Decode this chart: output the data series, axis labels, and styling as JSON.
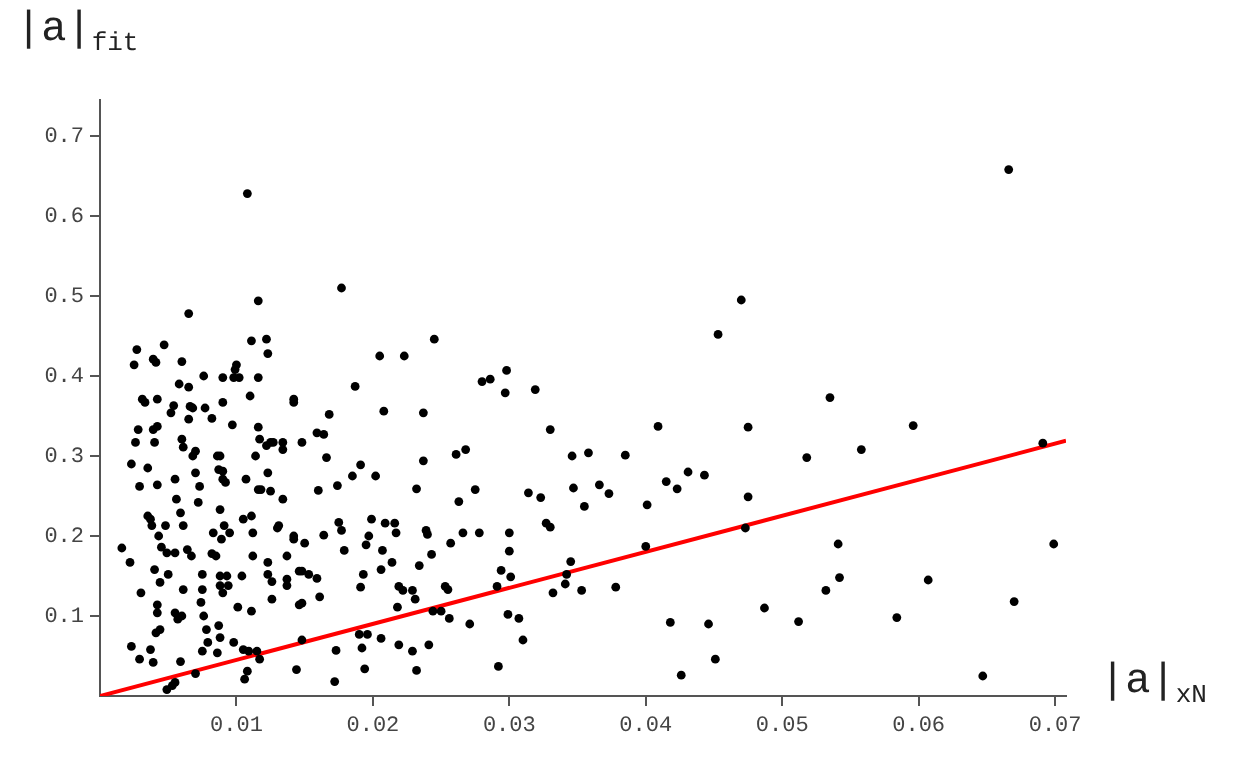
{
  "chart_data": {
    "type": "scatter",
    "xlabel": "|a|$_{xN}$",
    "ylabel": "|a|$_{fit}$",
    "xlim": [
      0,
      0.0708
    ],
    "ylim": [
      0,
      0.745
    ],
    "xticks": [
      0.01,
      0.02,
      0.03,
      0.04,
      0.05,
      0.06,
      0.07
    ],
    "yticks": [
      0.1,
      0.2,
      0.3,
      0.4,
      0.5,
      0.6,
      0.7
    ],
    "grid": false,
    "legend": false,
    "series": [
      {
        "color": "#000000",
        "marker": "circle",
        "x": [
          0.0016,
          0.0022,
          0.0027,
          0.0025,
          0.0023,
          0.0026,
          0.0028,
          0.0029,
          0.0031,
          0.0033,
          0.0035,
          0.0035,
          0.0037,
          0.003,
          0.0023,
          0.0029,
          0.0037,
          0.0039,
          0.0039,
          0.0039,
          0.0041,
          0.0042,
          0.004,
          0.0042,
          0.0042,
          0.0038,
          0.0043,
          0.004,
          0.0044,
          0.0042,
          0.0042,
          0.0041,
          0.0044,
          0.0045,
          0.0047,
          0.0048,
          0.005,
          0.0049,
          0.0052,
          0.0054,
          0.0055,
          0.0056,
          0.0055,
          0.0055,
          0.0057,
          0.0049,
          0.0053,
          0.0055,
          0.0059,
          0.0058,
          0.006,
          0.006,
          0.0061,
          0.0059,
          0.0061,
          0.0065,
          0.0065,
          0.0066,
          0.0065,
          0.0068,
          0.0068,
          0.007,
          0.0064,
          0.0067,
          0.007,
          0.0061,
          0.006,
          0.007,
          0.0075,
          0.0072,
          0.0073,
          0.0075,
          0.0076,
          0.0077,
          0.0075,
          0.0074,
          0.0076,
          0.0078,
          0.0079,
          0.0082,
          0.0083,
          0.0082,
          0.0085,
          0.0086,
          0.0088,
          0.0087,
          0.009,
          0.009,
          0.0088,
          0.0091,
          0.0089,
          0.0088,
          0.0088,
          0.009,
          0.0087,
          0.0088,
          0.0086,
          0.009,
          0.009,
          0.0092,
          0.0093,
          0.0094,
          0.0095,
          0.0097,
          0.0098,
          0.01,
          0.0099,
          0.0102,
          0.0098,
          0.0101,
          0.0104,
          0.0105,
          0.0106,
          0.0108,
          0.0109,
          0.0105,
          0.0107,
          0.0108,
          0.011,
          0.0111,
          0.0111,
          0.0112,
          0.0112,
          0.0111,
          0.0114,
          0.0116,
          0.0116,
          0.0116,
          0.0117,
          0.0116,
          0.0118,
          0.0117,
          0.0115,
          0.0122,
          0.0123,
          0.0122,
          0.0125,
          0.0123,
          0.0125,
          0.0123,
          0.0123,
          0.0126,
          0.0126,
          0.0127,
          0.013,
          0.0131,
          0.0134,
          0.0134,
          0.0134,
          0.0137,
          0.0137,
          0.0137,
          0.0142,
          0.0142,
          0.0142,
          0.0144,
          0.0146,
          0.0146,
          0.0177,
          0.0168,
          0.0187,
          0.0205,
          0.0223,
          0.0245,
          0.0208,
          0.0237,
          0.028,
          0.0286,
          0.0298,
          0.0297,
          0.0148,
          0.0159,
          0.0164,
          0.0166,
          0.0191,
          0.0185,
          0.0202,
          0.0174,
          0.016,
          0.0237,
          0.0232,
          0.0261,
          0.0268,
          0.0275,
          0.0263,
          0.0175,
          0.0177,
          0.0199,
          0.0209,
          0.0216,
          0.0217,
          0.0197,
          0.0195,
          0.0164,
          0.0179,
          0.0142,
          0.015,
          0.0207,
          0.0214,
          0.0206,
          0.0193,
          0.0234,
          0.0239,
          0.024,
          0.0243,
          0.0257,
          0.0266,
          0.0278,
          0.03,
          0.03,
          0.0148,
          0.0153,
          0.0159,
          0.0161,
          0.0148,
          0.0191,
          0.0219,
          0.0222,
          0.0229,
          0.0231,
          0.0218,
          0.0253,
          0.0255,
          0.0244,
          0.025,
          0.0256,
          0.0271,
          0.0291,
          0.0294,
          0.0299,
          0.0307,
          0.019,
          0.0196,
          0.0192,
          0.0206,
          0.0219,
          0.0241,
          0.0229,
          0.0232,
          0.0194,
          0.0173,
          0.0172,
          0.0148,
          0.0292,
          0.0319,
          0.033,
          0.0314,
          0.0323,
          0.0327,
          0.033,
          0.0301,
          0.0346,
          0.0347,
          0.0358,
          0.0355,
          0.0366,
          0.0373,
          0.0385,
          0.0345,
          0.0342,
          0.0341,
          0.0332,
          0.0353,
          0.0378,
          0.031,
          0.0401,
          0.0409,
          0.04,
          0.0415,
          0.0423,
          0.0431,
          0.0443,
          0.0453,
          0.047,
          0.0475,
          0.0475,
          0.0473,
          0.0418,
          0.0426,
          0.0446,
          0.0451,
          0.0487,
          0.0512,
          0.0518,
          0.0666,
          0.0535,
          0.0558,
          0.0596,
          0.0691,
          0.0541,
          0.0542,
          0.0532,
          0.0607,
          0.0584,
          0.0647,
          0.067,
          0.0699
        ],
        "values": [
          0.185,
          0.167,
          0.433,
          0.414,
          0.29,
          0.317,
          0.333,
          0.262,
          0.371,
          0.367,
          0.285,
          0.225,
          0.221,
          0.129,
          0.062,
          0.046,
          0.058,
          0.042,
          0.333,
          0.421,
          0.417,
          0.371,
          0.317,
          0.337,
          0.264,
          0.213,
          0.2,
          0.158,
          0.142,
          0.114,
          0.104,
          0.079,
          0.083,
          0.186,
          0.439,
          0.213,
          0.152,
          0.179,
          0.354,
          0.363,
          0.271,
          0.246,
          0.179,
          0.104,
          0.096,
          0.008,
          0.013,
          0.017,
          0.043,
          0.39,
          0.418,
          0.321,
          0.311,
          0.229,
          0.213,
          0.478,
          0.386,
          0.362,
          0.346,
          0.36,
          0.3,
          0.306,
          0.183,
          0.175,
          0.279,
          0.133,
          0.1,
          0.028,
          0.056,
          0.242,
          0.262,
          0.152,
          0.4,
          0.36,
          0.133,
          0.117,
          0.1,
          0.083,
          0.067,
          0.347,
          0.204,
          0.178,
          0.175,
          0.3,
          0.3,
          0.283,
          0.271,
          0.281,
          0.233,
          0.213,
          0.196,
          0.15,
          0.138,
          0.129,
          0.088,
          0.073,
          0.054,
          0.398,
          0.367,
          0.267,
          0.15,
          0.138,
          0.204,
          0.339,
          0.398,
          0.414,
          0.408,
          0.398,
          0.067,
          0.111,
          0.15,
          0.058,
          0.021,
          0.031,
          0.056,
          0.221,
          0.271,
          0.628,
          0.375,
          0.444,
          0.225,
          0.204,
          0.175,
          0.106,
          0.3,
          0.494,
          0.398,
          0.336,
          0.321,
          0.258,
          0.258,
          0.046,
          0.056,
          0.446,
          0.428,
          0.313,
          0.317,
          0.279,
          0.256,
          0.167,
          0.152,
          0.143,
          0.121,
          0.317,
          0.21,
          0.213,
          0.317,
          0.308,
          0.246,
          0.175,
          0.146,
          0.138,
          0.371,
          0.367,
          0.2,
          0.033,
          0.114,
          0.156,
          0.51,
          0.352,
          0.387,
          0.425,
          0.425,
          0.446,
          0.356,
          0.354,
          0.393,
          0.396,
          0.407,
          0.379,
          0.317,
          0.329,
          0.327,
          0.298,
          0.289,
          0.275,
          0.275,
          0.263,
          0.257,
          0.294,
          0.259,
          0.302,
          0.308,
          0.258,
          0.243,
          0.217,
          0.207,
          0.221,
          0.216,
          0.216,
          0.204,
          0.2,
          0.189,
          0.201,
          0.182,
          0.196,
          0.191,
          0.182,
          0.167,
          0.158,
          0.152,
          0.163,
          0.207,
          0.202,
          0.177,
          0.191,
          0.204,
          0.204,
          0.204,
          0.181,
          0.156,
          0.152,
          0.147,
          0.124,
          0.116,
          0.136,
          0.137,
          0.132,
          0.132,
          0.121,
          0.111,
          0.137,
          0.133,
          0.106,
          0.106,
          0.097,
          0.09,
          0.137,
          0.157,
          0.102,
          0.097,
          0.077,
          0.077,
          0.06,
          0.072,
          0.064,
          0.064,
          0.056,
          0.032,
          0.034,
          0.057,
          0.018,
          0.07,
          0.037,
          0.383,
          0.333,
          0.254,
          0.248,
          0.216,
          0.211,
          0.149,
          0.3,
          0.26,
          0.304,
          0.237,
          0.264,
          0.253,
          0.301,
          0.168,
          0.152,
          0.14,
          0.129,
          0.132,
          0.136,
          0.07,
          0.239,
          0.337,
          0.187,
          0.268,
          0.259,
          0.28,
          0.276,
          0.452,
          0.495,
          0.336,
          0.249,
          0.21,
          0.092,
          0.026,
          0.09,
          0.046,
          0.11,
          0.093,
          0.298,
          0.658,
          0.373,
          0.308,
          0.338,
          0.316,
          0.19,
          0.148,
          0.132,
          0.145,
          0.098,
          0.025,
          0.118,
          0.19
        ]
      },
      {
        "type": "line",
        "color": "#ff0000",
        "x": [
          0,
          0.0708
        ],
        "values": [
          0,
          0.319
        ]
      }
    ]
  }
}
